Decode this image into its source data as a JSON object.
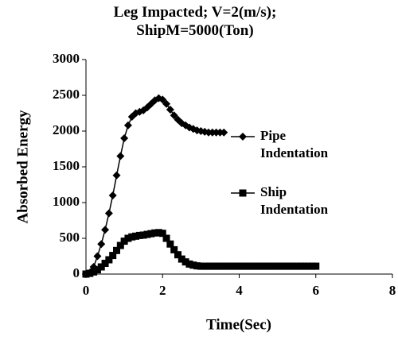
{
  "chart_data": {
    "type": "line",
    "title": "Leg Impacted; V=2(m/s); ShipM=5000(Ton)",
    "x_label": "Time(Sec)",
    "y_label": "Absorbed Energy",
    "xlim": [
      0,
      8
    ],
    "xticks": [
      0,
      2,
      4,
      6,
      8
    ],
    "ylim": [
      0,
      3000
    ],
    "yticks": [
      0,
      500,
      1000,
      1500,
      2000,
      2500,
      3000
    ],
    "grid": false,
    "legend": "right",
    "series": [
      {
        "name": "Pipe Indentation",
        "color": "#000000",
        "marker": "diamond",
        "x": [
          0,
          0.1,
          0.2,
          0.3,
          0.4,
          0.5,
          0.6,
          0.7,
          0.8,
          0.9,
          1.0,
          1.1,
          1.2,
          1.3,
          1.4,
          1.5,
          1.6,
          1.7,
          1.8,
          1.9,
          2.0,
          2.1,
          2.2,
          2.3,
          2.4,
          2.5,
          2.6,
          2.7,
          2.8,
          2.9,
          3.0,
          3.1,
          3.2,
          3.3,
          3.4,
          3.5,
          3.6
        ],
        "values": [
          0,
          20,
          100,
          250,
          420,
          620,
          850,
          1100,
          1380,
          1650,
          1900,
          2080,
          2200,
          2250,
          2270,
          2290,
          2330,
          2380,
          2430,
          2460,
          2440,
          2380,
          2300,
          2220,
          2160,
          2110,
          2080,
          2050,
          2030,
          2010,
          2000,
          1990,
          1980,
          1980,
          1980,
          1980,
          1980
        ]
      },
      {
        "name": "Ship Indentation",
        "color": "#000000",
        "marker": "square",
        "x": [
          0,
          0.1,
          0.2,
          0.3,
          0.4,
          0.5,
          0.6,
          0.7,
          0.8,
          0.9,
          1.0,
          1.1,
          1.2,
          1.3,
          1.4,
          1.5,
          1.6,
          1.7,
          1.8,
          1.9,
          2.0,
          2.1,
          2.2,
          2.3,
          2.4,
          2.5,
          2.6,
          2.7,
          2.8,
          2.9,
          3.0,
          3.1,
          3.2,
          3.3,
          3.4,
          3.5,
          3.6,
          3.7,
          3.8,
          3.9,
          4.0,
          4.1,
          4.2,
          4.3,
          4.4,
          4.5,
          4.6,
          4.7,
          4.8,
          4.9,
          5.0,
          5.1,
          5.2,
          5.3,
          5.4,
          5.5,
          5.6,
          5.7,
          5.8,
          5.9,
          6.0
        ],
        "values": [
          0,
          10,
          30,
          60,
          100,
          150,
          200,
          260,
          330,
          400,
          460,
          500,
          520,
          530,
          540,
          545,
          555,
          565,
          575,
          580,
          570,
          500,
          420,
          340,
          270,
          210,
          170,
          140,
          125,
          115,
          110,
          110,
          110,
          110,
          110,
          110,
          110,
          110,
          110,
          110,
          110,
          110,
          110,
          110,
          110,
          110,
          110,
          110,
          110,
          110,
          110,
          110,
          110,
          110,
          110,
          110,
          110,
          110,
          110,
          110,
          110
        ]
      }
    ]
  }
}
